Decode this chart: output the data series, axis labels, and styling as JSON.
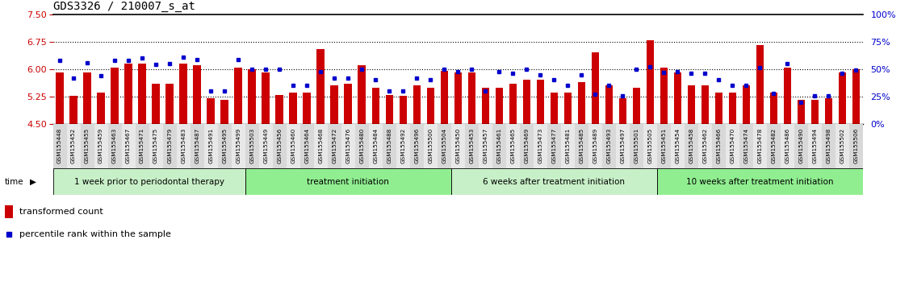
{
  "title": "GDS3326 / 210007_s_at",
  "ylim": [
    4.5,
    7.5
  ],
  "y_ticks": [
    4.5,
    5.25,
    6.0,
    6.75,
    7.5
  ],
  "y_right_ticks": [
    0,
    25,
    50,
    75,
    100
  ],
  "y_right_labels": [
    "0%",
    "25%",
    "50%",
    "75%",
    "100%"
  ],
  "bar_color": "#cc0000",
  "dot_color": "#0000cc",
  "base": 4.5,
  "samples": [
    "GSM155448",
    "GSM155452",
    "GSM155455",
    "GSM155459",
    "GSM155463",
    "GSM155467",
    "GSM155471",
    "GSM155475",
    "GSM155479",
    "GSM155483",
    "GSM155487",
    "GSM155491",
    "GSM155495",
    "GSM155499",
    "GSM155503",
    "GSM155449",
    "GSM155456",
    "GSM155460",
    "GSM155464",
    "GSM155468",
    "GSM155472",
    "GSM155476",
    "GSM155480",
    "GSM155484",
    "GSM155488",
    "GSM155492",
    "GSM155496",
    "GSM155500",
    "GSM155504",
    "GSM155450",
    "GSM155453",
    "GSM155457",
    "GSM155461",
    "GSM155465",
    "GSM155469",
    "GSM155473",
    "GSM155477",
    "GSM155481",
    "GSM155485",
    "GSM155489",
    "GSM155493",
    "GSM155497",
    "GSM155501",
    "GSM155505",
    "GSM155451",
    "GSM155454",
    "GSM155458",
    "GSM155462",
    "GSM155466",
    "GSM155470",
    "GSM155474",
    "GSM155478",
    "GSM155482",
    "GSM155486",
    "GSM155490",
    "GSM155494",
    "GSM155498",
    "GSM155502",
    "GSM155506"
  ],
  "bar_heights": [
    5.9,
    5.28,
    5.9,
    5.35,
    6.05,
    6.15,
    6.15,
    5.6,
    5.6,
    6.15,
    6.1,
    5.2,
    5.17,
    6.05,
    6.0,
    5.9,
    5.3,
    5.35,
    5.35,
    6.55,
    5.55,
    5.6,
    6.1,
    5.5,
    5.3,
    5.28,
    5.55,
    5.5,
    5.95,
    5.9,
    5.9,
    5.5,
    5.5,
    5.6,
    5.7,
    5.7,
    5.35,
    5.35,
    5.65,
    6.45,
    5.55,
    5.2,
    5.5,
    6.8,
    6.05,
    5.9,
    5.55,
    5.55,
    5.35,
    5.35,
    5.55,
    6.65,
    5.35,
    6.05,
    5.15,
    5.15,
    5.2,
    5.9,
    6.0
  ],
  "dot_values": [
    58,
    42,
    56,
    44,
    58,
    58,
    60,
    54,
    55,
    61,
    59,
    30,
    30,
    59,
    50,
    50,
    50,
    35,
    35,
    48,
    42,
    42,
    50,
    40,
    30,
    30,
    42,
    40,
    50,
    48,
    50,
    30,
    48,
    46,
    50,
    45,
    40,
    35,
    45,
    27,
    35,
    26,
    50,
    52,
    47,
    48,
    46,
    46,
    40,
    35,
    35,
    51,
    28,
    55,
    20,
    26,
    26,
    46,
    49
  ],
  "group_boundaries": [
    0,
    14,
    29,
    44,
    59
  ],
  "group_labels": [
    "1 week prior to periodontal therapy",
    "treatment initiation",
    "6 weeks after treatment initiation",
    "10 weeks after treatment initiation"
  ],
  "group_colors": [
    "#c8f0c8",
    "#90ee90",
    "#c8f0c8",
    "#90ee90"
  ],
  "legend_bar_label": "transformed count",
  "legend_dot_label": "percentile rank within the sample",
  "time_label": "time",
  "background_color": "#ffffff",
  "tick_color_left": "#cc0000",
  "tick_color_right": "#0000cc",
  "xticklabel_bg": "#d0d0d0"
}
